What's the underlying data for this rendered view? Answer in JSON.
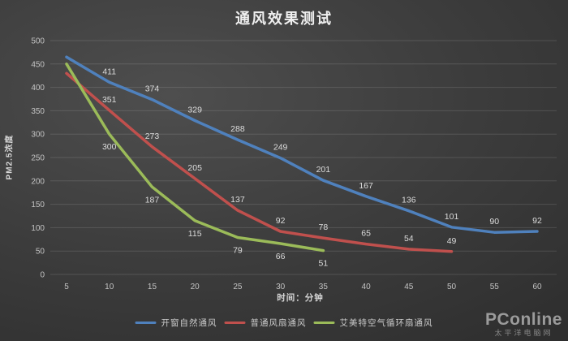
{
  "title": "通风效果测试",
  "chart_data": {
    "type": "line",
    "title": "通风效果测试",
    "xlabel": "时间：分钟",
    "ylabel": "PM2.5浓度",
    "x": [
      5,
      10,
      15,
      20,
      25,
      30,
      35,
      40,
      45,
      50,
      55,
      60
    ],
    "ylim": [
      0,
      500
    ],
    "ytick_step": 50,
    "grid": "horizontal-only",
    "legend_position": "bottom",
    "first_point_labeled": false,
    "background": "dark-gray-gradient",
    "series": [
      {
        "name": "开窗自然通风",
        "color": "#4F81BD",
        "values": [
          465,
          411,
          374,
          329,
          288,
          249,
          201,
          167,
          136,
          101,
          90,
          92
        ],
        "label_side": "above"
      },
      {
        "name": "普通风扇通风",
        "color": "#C0504D",
        "values": [
          430,
          351,
          273,
          205,
          137,
          92,
          78,
          65,
          54,
          49
        ],
        "label_side": "above"
      },
      {
        "name": "艾美特空气循环扇通风",
        "color": "#9BBB59",
        "values": [
          450,
          300,
          187,
          115,
          79,
          66,
          51
        ],
        "label_side": "below"
      }
    ]
  },
  "watermark": {
    "brand": "PConline",
    "subtitle": "太平洋电脑网"
  }
}
